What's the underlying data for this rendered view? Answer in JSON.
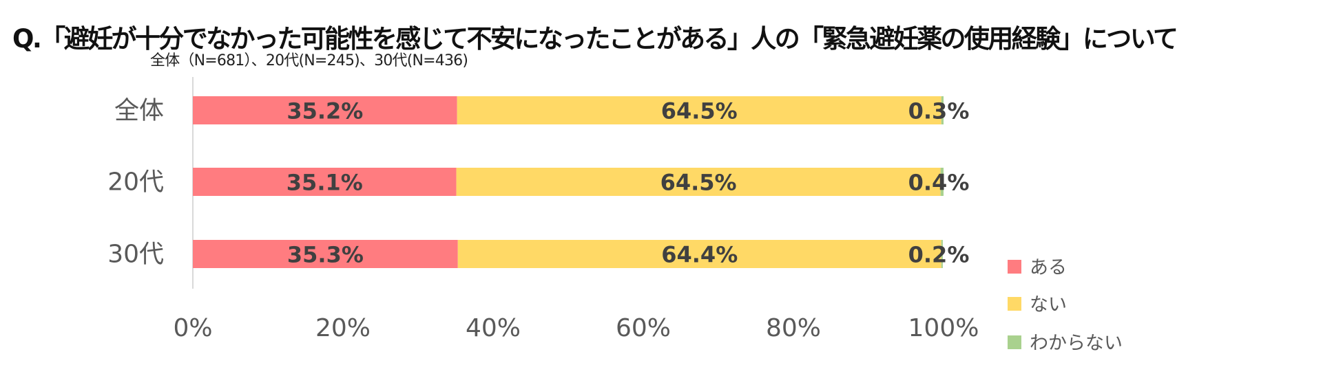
{
  "title": "Q.「避妊が十分でなかった可能性を感じて不安になったことがある」人の「緊急避妊薬の使用経験」について",
  "subtitle": "全体（N=681）、20代(N=245)、30代(N=436)",
  "chart_data": {
    "type": "bar",
    "orientation": "horizontal",
    "stacked": true,
    "categories": [
      "全体",
      "20代",
      "30代"
    ],
    "series": [
      {
        "name": "ある",
        "values": [
          35.2,
          35.1,
          35.3
        ],
        "labels": [
          "35.2%",
          "35.1%",
          "35.3%"
        ],
        "color": "#FF7C80"
      },
      {
        "name": "ない",
        "values": [
          64.5,
          64.5,
          64.4
        ],
        "labels": [
          "64.5%",
          "64.5%",
          "64.4%"
        ],
        "color": "#FFD966"
      },
      {
        "name": "わからない",
        "values": [
          0.3,
          0.4,
          0.2
        ],
        "labels": [
          "0.3%",
          "0.4%",
          "0.2%"
        ],
        "color": "#A9D18E"
      }
    ],
    "xticks": [
      "0%",
      "20%",
      "40%",
      "60%",
      "80%",
      "100%"
    ],
    "xlim": [
      0,
      100
    ],
    "legend_position": "bottom-right",
    "grid": false
  }
}
